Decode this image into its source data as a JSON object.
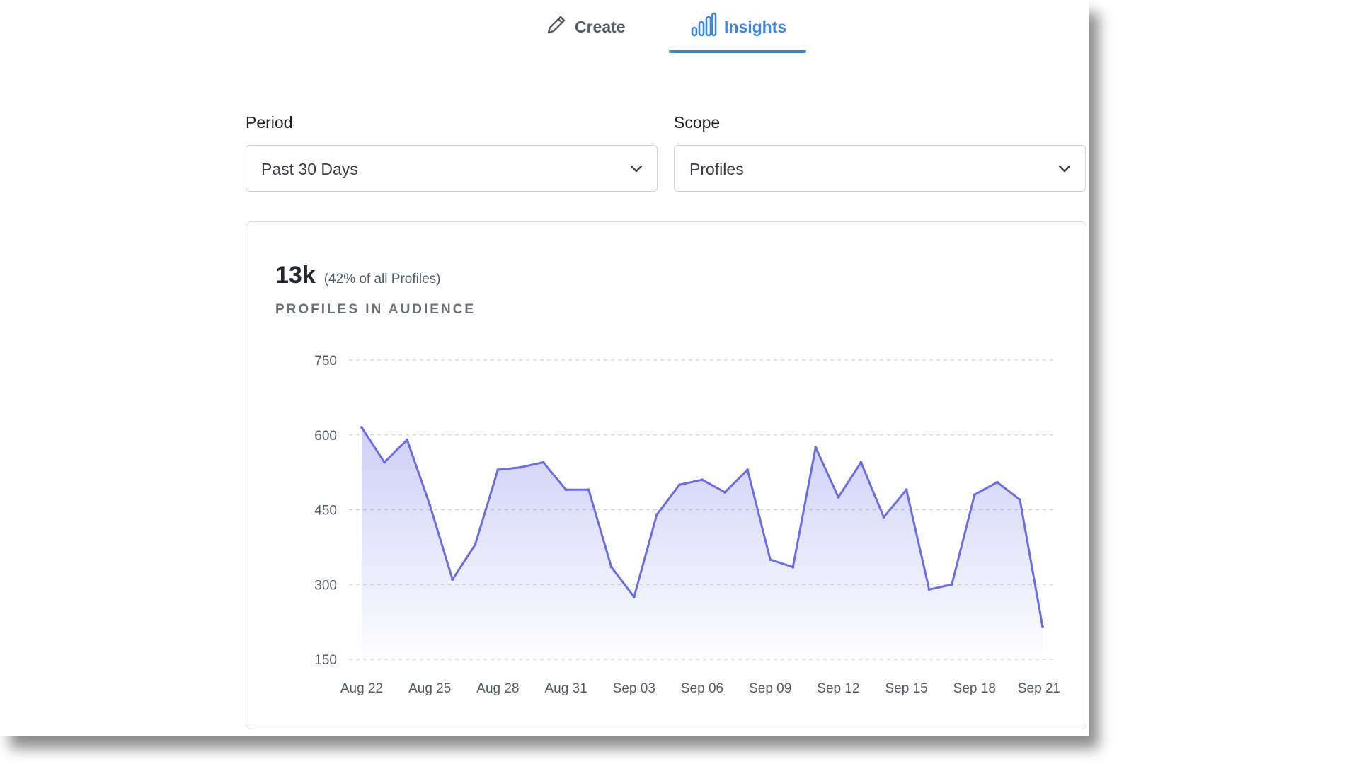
{
  "tabs": [
    {
      "label": "Create",
      "icon": "pencil-icon"
    },
    {
      "label": "Insights",
      "icon": "bar-chart-icon",
      "active": true
    }
  ],
  "filters": {
    "period": {
      "label": "Period",
      "value": "Past 30 Days"
    },
    "scope": {
      "label": "Scope",
      "value": "Profiles"
    }
  },
  "summary": {
    "value": "13k",
    "sub": "(42% of all Profiles)",
    "caption": "PROFILES IN AUDIENCE"
  },
  "colors": {
    "accent": "#3f86d4",
    "line": "#6b6ee0",
    "fill": "#a6a8f0"
  },
  "chart_data": {
    "type": "area",
    "ylim": [
      150,
      750
    ],
    "yticks": [
      750,
      600,
      450,
      300,
      150
    ],
    "xtick_labels": [
      "Aug 22",
      "Aug 25",
      "Aug 28",
      "Aug 31",
      "Sep 03",
      "Sep 06",
      "Sep 09",
      "Sep 12",
      "Sep 15",
      "Sep 18",
      "Sep 21"
    ],
    "grid": true,
    "x": [
      "Aug 22",
      "Aug 23",
      "Aug 24",
      "Aug 25",
      "Aug 26",
      "Aug 27",
      "Aug 28",
      "Aug 29",
      "Aug 30",
      "Aug 31",
      "Sep 01",
      "Sep 02",
      "Sep 03",
      "Sep 04",
      "Sep 05",
      "Sep 06",
      "Sep 07",
      "Sep 08",
      "Sep 09",
      "Sep 10",
      "Sep 11",
      "Sep 12",
      "Sep 13",
      "Sep 14",
      "Sep 15",
      "Sep 16",
      "Sep 17",
      "Sep 18",
      "Sep 19",
      "Sep 20",
      "Sep 21"
    ],
    "series": [
      {
        "values": [
          615,
          545,
          590,
          460,
          310,
          380,
          530,
          535,
          545,
          490,
          490,
          335,
          275,
          440,
          500,
          510,
          485,
          530,
          350,
          335,
          575,
          475,
          545,
          435,
          490,
          290,
          300,
          480,
          505,
          470,
          215
        ]
      }
    ]
  }
}
